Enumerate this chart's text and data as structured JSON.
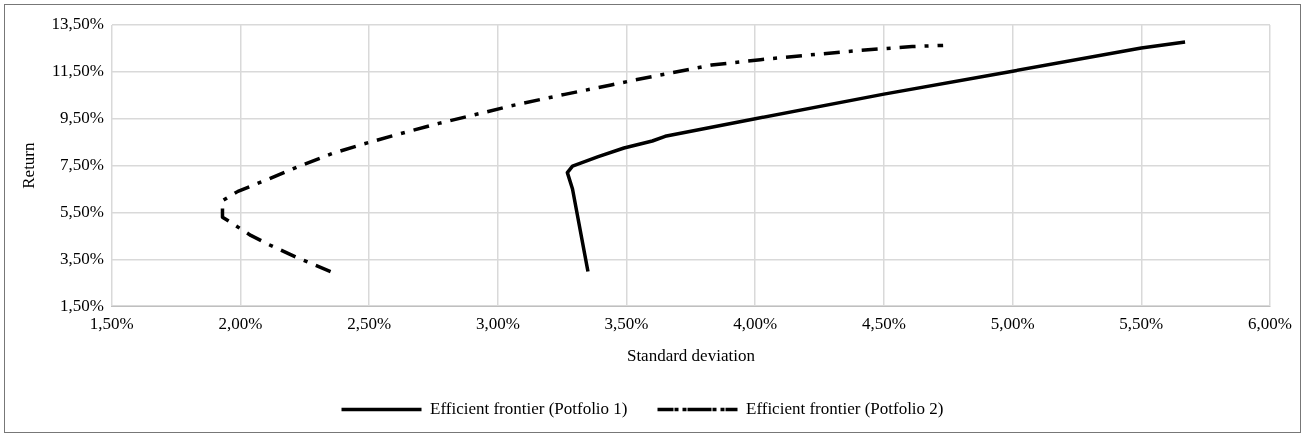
{
  "chart_data": {
    "type": "line",
    "xlabel": "Standard deviation",
    "ylabel": "Return",
    "xlim": [
      1.5,
      6.0
    ],
    "xticks": [
      {
        "value": 1.5,
        "label": "1,50%"
      },
      {
        "value": 2.0,
        "label": "2,00%"
      },
      {
        "value": 2.5,
        "label": "2,50%"
      },
      {
        "value": 3.0,
        "label": "3,00%"
      },
      {
        "value": 3.5,
        "label": "3,50%"
      },
      {
        "value": 4.0,
        "label": "4,00%"
      },
      {
        "value": 4.5,
        "label": "4,50%"
      },
      {
        "value": 5.0,
        "label": "5,00%"
      },
      {
        "value": 5.5,
        "label": "5,50%"
      },
      {
        "value": 6.0,
        "label": "6,00%"
      }
    ],
    "ylim": [
      1.5,
      13.5
    ],
    "yticks": [
      {
        "value": 1.5,
        "label": "1,50%"
      },
      {
        "value": 3.5,
        "label": "3,50%"
      },
      {
        "value": 5.5,
        "label": "5,50%"
      },
      {
        "value": 7.5,
        "label": "7,50%"
      },
      {
        "value": 9.5,
        "label": "9,50%"
      },
      {
        "value": 11.5,
        "label": "11,50%"
      },
      {
        "value": 13.5,
        "label": "13,50%"
      }
    ],
    "grid": true,
    "legend": "bottom",
    "marker": "none",
    "series": [
      {
        "name": "Efficient frontier (Potfolio 1)",
        "color": "#000000",
        "line_style": "solid",
        "x": [
          3.35,
          3.29,
          3.27,
          3.29,
          3.39,
          3.49,
          3.6,
          3.65,
          4.0,
          4.5,
          5.0,
          5.5,
          5.67
        ],
        "values": [
          2.98,
          6.5,
          7.2,
          7.48,
          7.88,
          8.25,
          8.55,
          8.75,
          9.5,
          10.55,
          11.53,
          12.52,
          12.77
        ]
      },
      {
        "name": "Efficient frontier (Potfolio 2)",
        "color": "#000000",
        "line_style": "dashed",
        "x": [
          2.35,
          2.22,
          2.11,
          2.04,
          1.98,
          1.93,
          1.93,
          1.99,
          2.11,
          2.23,
          2.36,
          2.48,
          2.6,
          2.77,
          2.94,
          3.05,
          3.26,
          3.44,
          3.53,
          3.83,
          4.02,
          4.21,
          4.41,
          4.61,
          4.73
        ],
        "values": [
          2.98,
          3.57,
          4.13,
          4.52,
          4.95,
          5.3,
          6.0,
          6.4,
          6.93,
          7.48,
          8.03,
          8.43,
          8.8,
          9.3,
          9.75,
          10.05,
          10.54,
          10.94,
          11.15,
          11.79,
          12.02,
          12.22,
          12.42,
          12.58,
          12.63
        ]
      }
    ]
  }
}
